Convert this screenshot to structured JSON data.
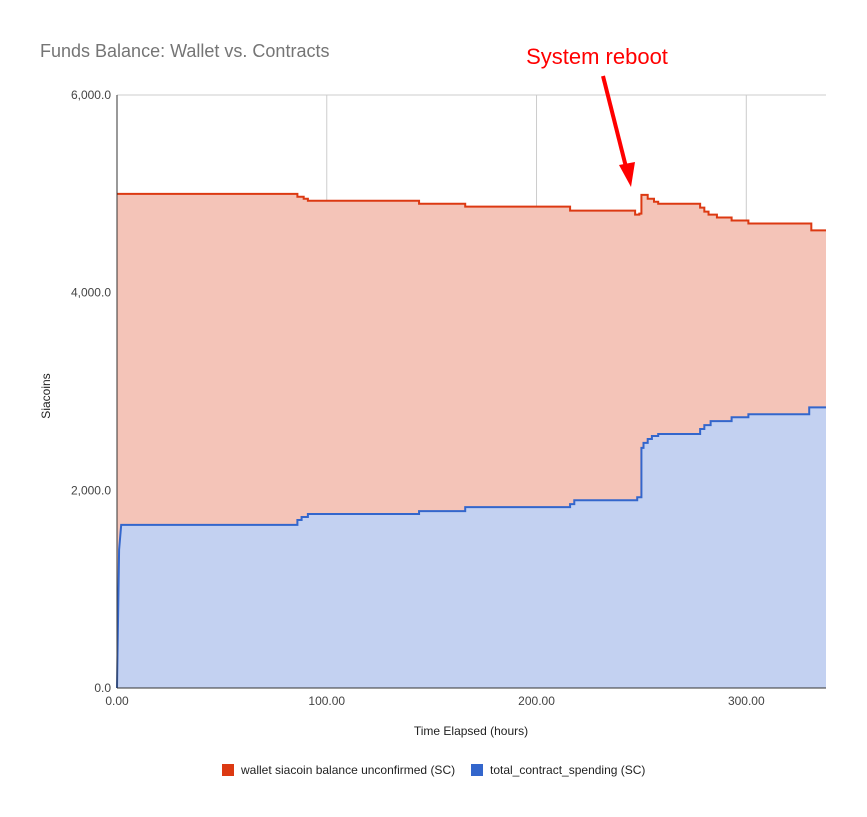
{
  "chart_data": {
    "type": "area",
    "title": "Funds Balance: Wallet vs. Contracts",
    "xlabel": "Time Elapsed (hours)",
    "ylabel": "Siacoins",
    "xlim": [
      0,
      338
    ],
    "ylim": [
      0,
      6000
    ],
    "x_ticks": [
      0,
      100,
      200,
      300
    ],
    "x_tick_labels": [
      "0.00",
      "100.00",
      "200.00",
      "300.00"
    ],
    "y_ticks": [
      0,
      2000,
      4000,
      6000
    ],
    "y_tick_labels": [
      "0.0",
      "2,000.0",
      "4,000.0",
      "6,000.0"
    ],
    "grid": true,
    "legend_position": "bottom",
    "annotation": {
      "text": "System reboot",
      "x": 250,
      "y": 5000
    },
    "series": [
      {
        "name": "wallet siacoin balance unconfirmed (SC)",
        "color": "#dc3912",
        "fill": "#f4c4b8",
        "points": [
          [
            0,
            5000
          ],
          [
            86,
            5000
          ],
          [
            86,
            4970
          ],
          [
            89,
            4970
          ],
          [
            89,
            4950
          ],
          [
            91,
            4950
          ],
          [
            91,
            4930
          ],
          [
            144,
            4930
          ],
          [
            144,
            4900
          ],
          [
            166,
            4900
          ],
          [
            166,
            4870
          ],
          [
            216,
            4870
          ],
          [
            216,
            4830
          ],
          [
            247,
            4830
          ],
          [
            247,
            4790
          ],
          [
            249,
            4790
          ],
          [
            249,
            4800
          ],
          [
            250,
            4800
          ],
          [
            250,
            4990
          ],
          [
            253,
            4990
          ],
          [
            253,
            4950
          ],
          [
            256,
            4950
          ],
          [
            256,
            4920
          ],
          [
            258,
            4920
          ],
          [
            258,
            4900
          ],
          [
            278,
            4900
          ],
          [
            278,
            4860
          ],
          [
            280,
            4860
          ],
          [
            280,
            4820
          ],
          [
            282,
            4820
          ],
          [
            282,
            4790
          ],
          [
            286,
            4790
          ],
          [
            286,
            4760
          ],
          [
            293,
            4760
          ],
          [
            293,
            4730
          ],
          [
            301,
            4730
          ],
          [
            301,
            4700
          ],
          [
            331,
            4700
          ],
          [
            331,
            4630
          ],
          [
            338,
            4630
          ]
        ]
      },
      {
        "name": "total_contract_spending (SC)",
        "color": "#3366cc",
        "fill": "#c3d1f1",
        "points": [
          [
            0,
            0
          ],
          [
            1,
            1400
          ],
          [
            2,
            1650
          ],
          [
            86,
            1650
          ],
          [
            86,
            1700
          ],
          [
            88,
            1700
          ],
          [
            88,
            1730
          ],
          [
            91,
            1730
          ],
          [
            91,
            1760
          ],
          [
            144,
            1760
          ],
          [
            144,
            1790
          ],
          [
            166,
            1790
          ],
          [
            166,
            1830
          ],
          [
            216,
            1830
          ],
          [
            216,
            1860
          ],
          [
            218,
            1860
          ],
          [
            218,
            1900
          ],
          [
            248,
            1900
          ],
          [
            248,
            1930
          ],
          [
            250,
            1930
          ],
          [
            250,
            2430
          ],
          [
            251,
            2430
          ],
          [
            251,
            2480
          ],
          [
            253,
            2480
          ],
          [
            253,
            2520
          ],
          [
            255,
            2520
          ],
          [
            255,
            2550
          ],
          [
            258,
            2550
          ],
          [
            258,
            2570
          ],
          [
            278,
            2570
          ],
          [
            278,
            2620
          ],
          [
            280,
            2620
          ],
          [
            280,
            2660
          ],
          [
            283,
            2660
          ],
          [
            283,
            2700
          ],
          [
            293,
            2700
          ],
          [
            293,
            2740
          ],
          [
            301,
            2740
          ],
          [
            301,
            2770
          ],
          [
            330,
            2770
          ],
          [
            330,
            2840
          ],
          [
            338,
            2840
          ]
        ]
      }
    ]
  }
}
